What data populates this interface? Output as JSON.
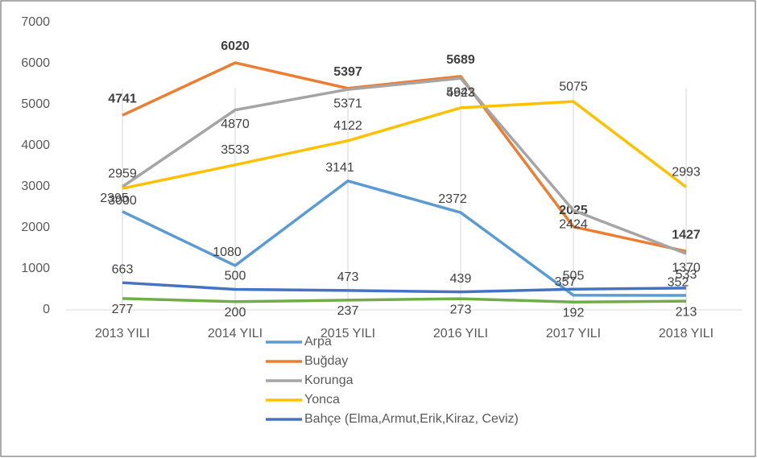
{
  "chart_data": {
    "type": "line",
    "categories": [
      "2013 YILI",
      "2014 YILI",
      "2015 YILI",
      "2016 YILI",
      "2017 YILI",
      "2018 YILI"
    ],
    "series": [
      {
        "name": "Arpa",
        "color": "#5b9bd5",
        "values": [
          2395,
          1080,
          3141,
          2372,
          357,
          352
        ]
      },
      {
        "name": "Buğday",
        "color": "#ed7d31",
        "values": [
          4741,
          6020,
          5397,
          5689,
          2025,
          1427
        ]
      },
      {
        "name": "Korunga",
        "color": "#a5a5a5",
        "values": [
          3000,
          4870,
          5371,
          5642,
          2424,
          1370
        ]
      },
      {
        "name": "Yonca",
        "color": "#ffc000",
        "values": [
          2959,
          3533,
          4122,
          4923,
          5075,
          2993
        ]
      },
      {
        "name": "Bahçe (Elma,Armut,Erik,Kiraz, Ceviz)",
        "color": "#4472c4",
        "values": [
          663,
          500,
          473,
          439,
          505,
          533
        ]
      },
      {
        "color": "#70ad47",
        "values": [
          277,
          200,
          237,
          273,
          192,
          213
        ]
      }
    ],
    "ylim": [
      0,
      7000
    ],
    "yticks": [
      0,
      1000,
      2000,
      3000,
      4000,
      5000,
      6000,
      7000
    ]
  }
}
